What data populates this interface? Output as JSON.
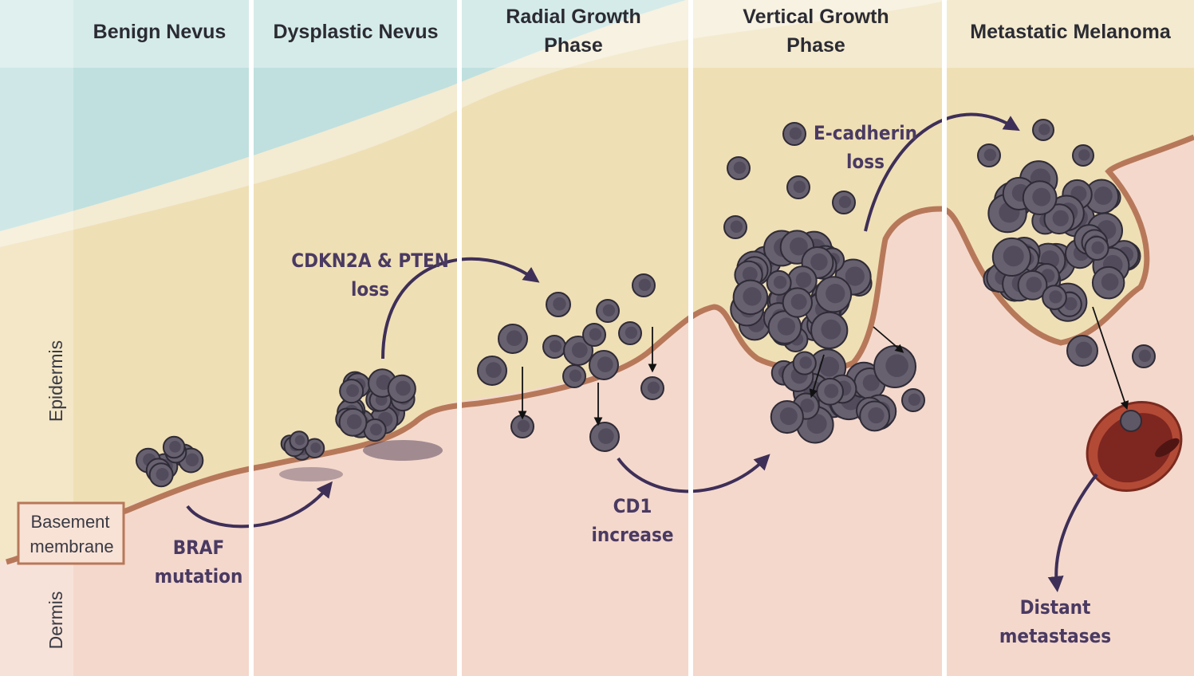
{
  "stages": [
    {
      "lines": [
        "Benign Nevus"
      ]
    },
    {
      "lines": [
        "Dysplastic Nevus"
      ]
    },
    {
      "lines": [
        "Radial Growth",
        "Phase"
      ]
    },
    {
      "lines": [
        "Vertical Growth",
        "Phase"
      ]
    },
    {
      "lines": [
        "Metastatic Melanoma"
      ]
    }
  ],
  "layers": {
    "epidermis": "Epidermis",
    "dermis": "Dermis"
  },
  "basement_membrane": {
    "lines": [
      "Basement",
      "membrane"
    ]
  },
  "annotations": [
    {
      "lines": [
        "BRAF",
        "mutation"
      ]
    },
    {
      "lines": [
        "CDKN2A & PTEN",
        "loss"
      ]
    },
    {
      "lines": [
        "CD1",
        "increase"
      ]
    },
    {
      "lines": [
        "E-cadherin",
        "loss"
      ]
    },
    {
      "lines": [
        "Distant",
        "metastases"
      ]
    }
  ]
}
